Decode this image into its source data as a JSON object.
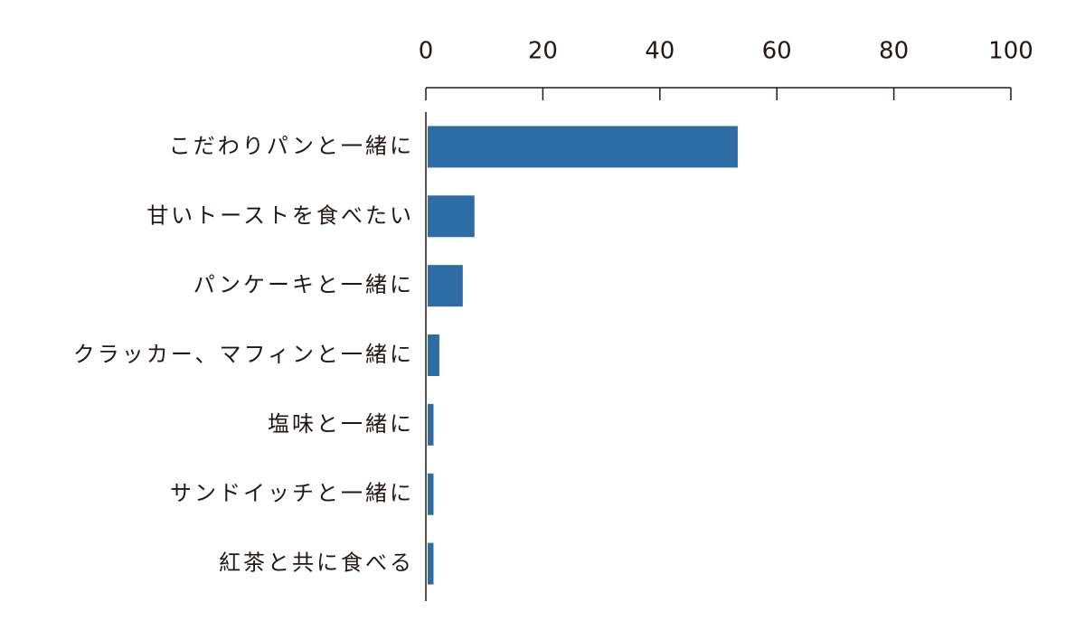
{
  "chart_data": {
    "type": "bar",
    "orientation": "horizontal",
    "categories": [
      "こだわりパンと一緒に",
      "甘いトーストを食べたい",
      "パンケーキと一緒に",
      "クラッカー、マフィンと一緒に",
      "塩味と一緒に",
      "サンドイッチと一緒に",
      "紅茶と共に食べる"
    ],
    "values": [
      53,
      8,
      6,
      2,
      1,
      1,
      1
    ],
    "color": "#2e6ca6",
    "xlim": [
      0,
      100
    ],
    "xticks": [
      0,
      20,
      40,
      60,
      80,
      100
    ]
  }
}
